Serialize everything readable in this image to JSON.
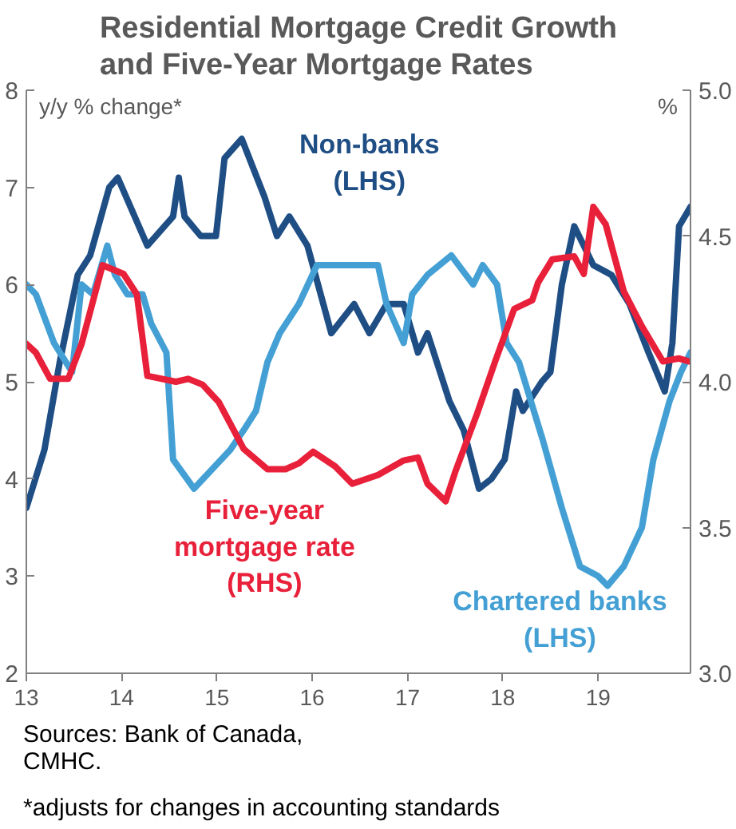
{
  "chart_data": {
    "type": "line",
    "title": "Residential Mortgage Credit Growth\nand Five-Year Mortgage Rates",
    "ylabel": "y/y % change*",
    "y2label": "%",
    "xlim": [
      2013,
      2019.97
    ],
    "xticks": [
      {
        "value": 2013,
        "label": "13"
      },
      {
        "value": 2014,
        "label": "14"
      },
      {
        "value": 2015,
        "label": "15"
      },
      {
        "value": 2016,
        "label": "16"
      },
      {
        "value": 2017,
        "label": "17"
      },
      {
        "value": 2018,
        "label": "18"
      },
      {
        "value": 2019,
        "label": "19"
      }
    ],
    "ylim": [
      2,
      8
    ],
    "yticks": [
      2,
      3,
      4,
      5,
      6,
      7,
      8
    ],
    "y2lim": [
      3,
      5
    ],
    "y2ticks": [
      {
        "value": 3,
        "label": "3.0"
      },
      {
        "value": 3.5,
        "label": "3.5"
      },
      {
        "value": 4,
        "label": "4.0"
      },
      {
        "value": 4.5,
        "label": "4.5"
      },
      {
        "value": 5,
        "label": "5.0"
      }
    ],
    "grid": false,
    "series": [
      {
        "name": "Non-banks\n(LHS)",
        "color": "#1f4e85",
        "x": [
          2013.0,
          2013.19,
          2013.35,
          2013.54,
          2013.67,
          2013.87,
          2013.96,
          2014.27,
          2014.54,
          2014.6,
          2014.66,
          2014.83,
          2014.99,
          2015.08,
          2015.26,
          2015.5,
          2015.63,
          2015.76,
          2015.95,
          2016.2,
          2016.44,
          2016.6,
          2016.78,
          2016.96,
          2017.11,
          2017.21,
          2017.44,
          2017.59,
          2017.75,
          2017.88,
          2018.02,
          2018.14,
          2018.21,
          2018.41,
          2018.5,
          2018.62,
          2018.75,
          2018.95,
          2019.14,
          2019.33,
          2019.53,
          2019.7,
          2019.78,
          2019.85,
          2019.97
        ],
        "values": [
          3.7,
          4.3,
          5.2,
          6.1,
          6.3,
          7.0,
          7.1,
          6.4,
          6.7,
          7.1,
          6.7,
          6.5,
          6.5,
          7.3,
          7.5,
          6.9,
          6.5,
          6.7,
          6.4,
          5.5,
          5.8,
          5.5,
          5.8,
          5.8,
          5.3,
          5.5,
          4.8,
          4.5,
          3.9,
          4.0,
          4.2,
          4.9,
          4.7,
          5.0,
          5.1,
          6.0,
          6.6,
          6.2,
          6.1,
          5.8,
          5.3,
          4.9,
          5.4,
          6.6,
          6.8
        ]
      },
      {
        "name": "Chartered banks\n(LHS)",
        "color": "#44a0d4",
        "x": [
          2013.0,
          2013.1,
          2013.29,
          2013.48,
          2013.58,
          2013.7,
          2013.85,
          2013.93,
          2014.06,
          2014.22,
          2014.31,
          2014.47,
          2014.54,
          2014.76,
          2014.95,
          2015.14,
          2015.28,
          2015.41,
          2015.53,
          2015.66,
          2015.86,
          2016.05,
          2016.24,
          2016.49,
          2016.69,
          2016.78,
          2016.96,
          2017.05,
          2017.21,
          2017.46,
          2017.69,
          2017.79,
          2017.94,
          2018.04,
          2018.17,
          2018.42,
          2018.62,
          2018.81,
          2019.0,
          2019.1,
          2019.27,
          2019.46,
          2019.58,
          2019.75,
          2019.87,
          2019.97
        ],
        "values": [
          6.0,
          5.9,
          5.4,
          5.1,
          6.0,
          5.9,
          6.4,
          6.1,
          5.9,
          5.9,
          5.6,
          5.3,
          4.2,
          3.9,
          4.1,
          4.3,
          4.5,
          4.7,
          5.2,
          5.5,
          5.8,
          6.2,
          6.2,
          6.2,
          6.2,
          5.8,
          5.4,
          5.9,
          6.1,
          6.3,
          6.0,
          6.2,
          6.0,
          5.4,
          5.2,
          4.4,
          3.7,
          3.1,
          3.0,
          2.9,
          3.1,
          3.5,
          4.2,
          4.8,
          5.1,
          5.3
        ]
      },
      {
        "name": "Five-year\nmortgage rate\n(RHS)",
        "color": "#e8203a",
        "axis": "y2",
        "x": [
          2013.0,
          2013.1,
          2013.25,
          2013.44,
          2013.58,
          2013.8,
          2014.02,
          2014.16,
          2014.27,
          2014.57,
          2014.7,
          2014.85,
          2015.02,
          2015.28,
          2015.53,
          2015.72,
          2015.86,
          2016.01,
          2016.24,
          2016.42,
          2016.69,
          2016.96,
          2017.11,
          2017.21,
          2017.4,
          2017.5,
          2017.73,
          2017.92,
          2018.12,
          2018.31,
          2018.37,
          2018.52,
          2018.75,
          2018.85,
          2018.95,
          2019.08,
          2019.27,
          2019.46,
          2019.68,
          2019.85,
          2019.95
        ],
        "values": [
          4.13,
          4.1,
          4.01,
          4.01,
          4.13,
          4.4,
          4.37,
          4.3,
          4.02,
          4.0,
          4.01,
          3.99,
          3.93,
          3.77,
          3.7,
          3.7,
          3.72,
          3.76,
          3.71,
          3.65,
          3.68,
          3.73,
          3.74,
          3.65,
          3.59,
          3.69,
          3.89,
          4.07,
          4.25,
          4.28,
          4.34,
          4.42,
          4.43,
          4.37,
          4.6,
          4.54,
          4.31,
          4.19,
          4.07,
          4.08,
          4.07
        ]
      }
    ],
    "annotations": [
      "Sources: Bank of Canada,\nCMHC.",
      "*adjusts for changes in accounting standards"
    ]
  }
}
